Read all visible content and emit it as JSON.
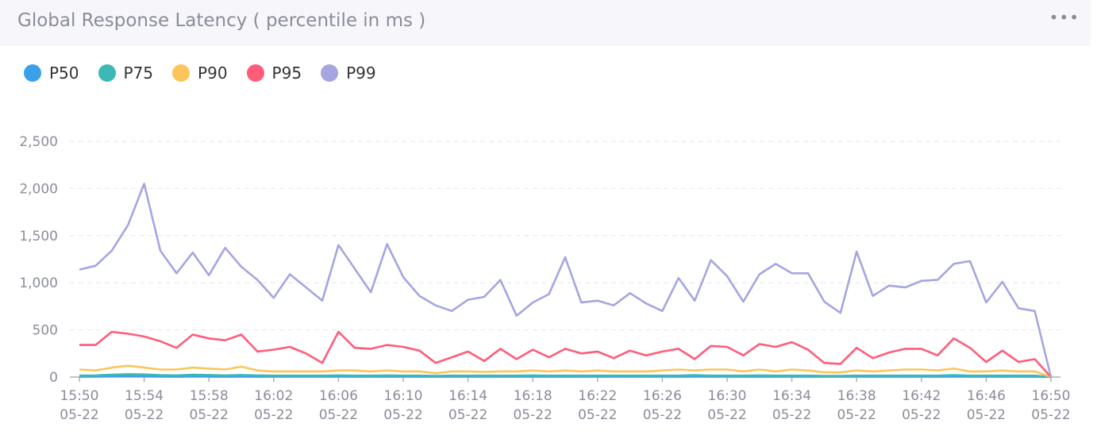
{
  "header": {
    "title": "Global Response Latency ( percentile in ms )",
    "menu_icon": "more-dots-icon"
  },
  "legend": [
    {
      "label": "P50",
      "color": "#3ba0e9"
    },
    {
      "label": "P75",
      "color": "#3cb8b6"
    },
    {
      "label": "P90",
      "color": "#fcc55c"
    },
    {
      "label": "P95",
      "color": "#ff5c7a"
    },
    {
      "label": "P99",
      "color": "#a5a5e2"
    }
  ],
  "chart_data": {
    "type": "line",
    "title": "Global Response Latency ( percentile in ms )",
    "xlabel": "",
    "ylabel": "",
    "ylim": [
      0,
      2500
    ],
    "y_ticks": [
      "0",
      "500",
      "1,000",
      "1,500",
      "2,000",
      "2,500"
    ],
    "grid": true,
    "legend_position": "top-left",
    "x_ticks": [
      {
        "time": "15:50",
        "date": "05-22"
      },
      {
        "time": "15:54",
        "date": "05-22"
      },
      {
        "time": "15:58",
        "date": "05-22"
      },
      {
        "time": "16:02",
        "date": "05-22"
      },
      {
        "time": "16:06",
        "date": "05-22"
      },
      {
        "time": "16:10",
        "date": "05-22"
      },
      {
        "time": "16:14",
        "date": "05-22"
      },
      {
        "time": "16:18",
        "date": "05-22"
      },
      {
        "time": "16:22",
        "date": "05-22"
      },
      {
        "time": "16:26",
        "date": "05-22"
      },
      {
        "time": "16:30",
        "date": "05-22"
      },
      {
        "time": "16:34",
        "date": "05-22"
      },
      {
        "time": "16:38",
        "date": "05-22"
      },
      {
        "time": "16:42",
        "date": "05-22"
      },
      {
        "time": "16:46",
        "date": "05-22"
      },
      {
        "time": "16:50",
        "date": "05-22"
      }
    ],
    "x": [
      "15:50",
      "15:51",
      "15:52",
      "15:53",
      "15:54",
      "15:55",
      "15:56",
      "15:57",
      "15:58",
      "15:59",
      "16:00",
      "16:01",
      "16:02",
      "16:03",
      "16:04",
      "16:05",
      "16:06",
      "16:07",
      "16:08",
      "16:09",
      "16:10",
      "16:11",
      "16:12",
      "16:13",
      "16:14",
      "16:15",
      "16:16",
      "16:17",
      "16:18",
      "16:19",
      "16:20",
      "16:21",
      "16:22",
      "16:23",
      "16:24",
      "16:25",
      "16:26",
      "16:27",
      "16:28",
      "16:29",
      "16:30",
      "16:31",
      "16:32",
      "16:33",
      "16:34",
      "16:35",
      "16:36",
      "16:37",
      "16:38",
      "16:39",
      "16:40",
      "16:41",
      "16:42",
      "16:43",
      "16:44",
      "16:45",
      "16:46",
      "16:47",
      "16:48",
      "16:49",
      "16:50"
    ],
    "series": [
      {
        "name": "P50",
        "color": "#3ba0e9",
        "values": [
          5,
          6,
          8,
          10,
          8,
          6,
          5,
          7,
          6,
          5,
          6,
          5,
          5,
          5,
          5,
          5,
          6,
          5,
          5,
          5,
          5,
          5,
          4,
          5,
          5,
          5,
          5,
          5,
          5,
          5,
          5,
          5,
          5,
          5,
          5,
          5,
          5,
          5,
          6,
          5,
          5,
          5,
          5,
          5,
          5,
          5,
          4,
          4,
          5,
          5,
          5,
          5,
          5,
          5,
          6,
          5,
          5,
          5,
          5,
          5,
          0
        ]
      },
      {
        "name": "P75",
        "color": "#3cb8b6",
        "values": [
          15,
          18,
          25,
          30,
          28,
          20,
          18,
          25,
          22,
          18,
          22,
          18,
          15,
          15,
          15,
          15,
          18,
          15,
          15,
          18,
          15,
          15,
          12,
          15,
          15,
          15,
          15,
          15,
          18,
          15,
          15,
          15,
          15,
          15,
          15,
          15,
          15,
          15,
          20,
          15,
          15,
          15,
          18,
          15,
          15,
          15,
          12,
          12,
          15,
          15,
          15,
          15,
          15,
          15,
          20,
          15,
          15,
          15,
          15,
          15,
          0
        ]
      },
      {
        "name": "P90",
        "color": "#fcc55c",
        "values": [
          80,
          70,
          100,
          120,
          100,
          80,
          80,
          100,
          90,
          80,
          110,
          70,
          60,
          60,
          60,
          60,
          70,
          70,
          60,
          70,
          60,
          60,
          40,
          60,
          60,
          55,
          60,
          60,
          70,
          60,
          70,
          60,
          70,
          60,
          60,
          60,
          70,
          80,
          70,
          80,
          80,
          60,
          80,
          60,
          80,
          70,
          50,
          50,
          70,
          60,
          70,
          80,
          80,
          70,
          90,
          60,
          60,
          70,
          60,
          60,
          0
        ]
      },
      {
        "name": "P95",
        "color": "#ff5c7a",
        "values": [
          340,
          340,
          480,
          460,
          430,
          380,
          310,
          450,
          410,
          390,
          450,
          270,
          290,
          320,
          250,
          150,
          480,
          310,
          300,
          340,
          320,
          280,
          150,
          210,
          270,
          170,
          300,
          190,
          290,
          210,
          300,
          250,
          270,
          200,
          280,
          230,
          270,
          300,
          190,
          330,
          320,
          230,
          350,
          320,
          370,
          290,
          150,
          140,
          310,
          200,
          260,
          300,
          300,
          230,
          410,
          310,
          160,
          280,
          160,
          190,
          0
        ]
      },
      {
        "name": "P99",
        "color": "#a5a5e2",
        "values": [
          1140,
          1180,
          1340,
          1610,
          2050,
          1340,
          1100,
          1320,
          1080,
          1370,
          1170,
          1030,
          840,
          1090,
          950,
          810,
          1400,
          1150,
          900,
          1410,
          1060,
          860,
          760,
          700,
          820,
          850,
          1030,
          650,
          790,
          880,
          1270,
          790,
          810,
          760,
          890,
          780,
          700,
          1050,
          810,
          1240,
          1070,
          800,
          1090,
          1200,
          1100,
          1100,
          800,
          680,
          1330,
          860,
          970,
          950,
          1020,
          1030,
          1200,
          1230,
          790,
          1010,
          730,
          700,
          0
        ]
      }
    ]
  }
}
